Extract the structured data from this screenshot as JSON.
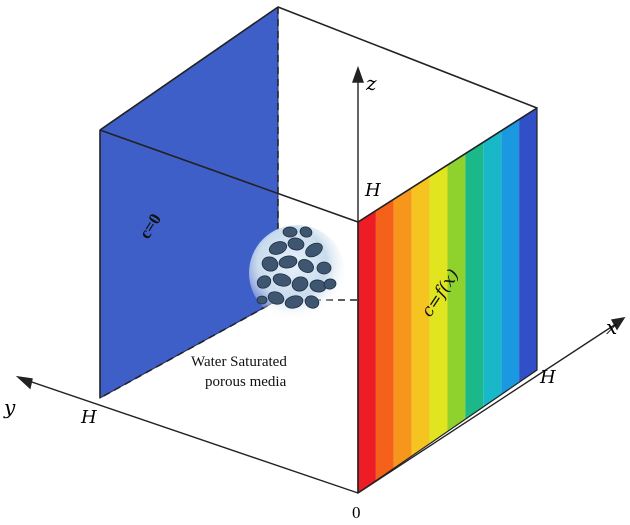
{
  "axes": {
    "x": "x",
    "y": "y",
    "z": "z",
    "origin": "0",
    "h_x": "H",
    "h_y": "H",
    "h_z": "H"
  },
  "faces": {
    "left_condition": "c=0",
    "right_condition": "c=f(x)",
    "left_color": "#3f5fc8",
    "gradient_colors": [
      "#ee1c25",
      "#f5611a",
      "#f6971c",
      "#f5c421",
      "#e0e51f",
      "#8fd22e",
      "#1bb98a",
      "#19b8c9",
      "#1a99e0",
      "#3150c8"
    ]
  },
  "medium": {
    "line1": "Water Saturated",
    "line2": "porous media"
  }
}
